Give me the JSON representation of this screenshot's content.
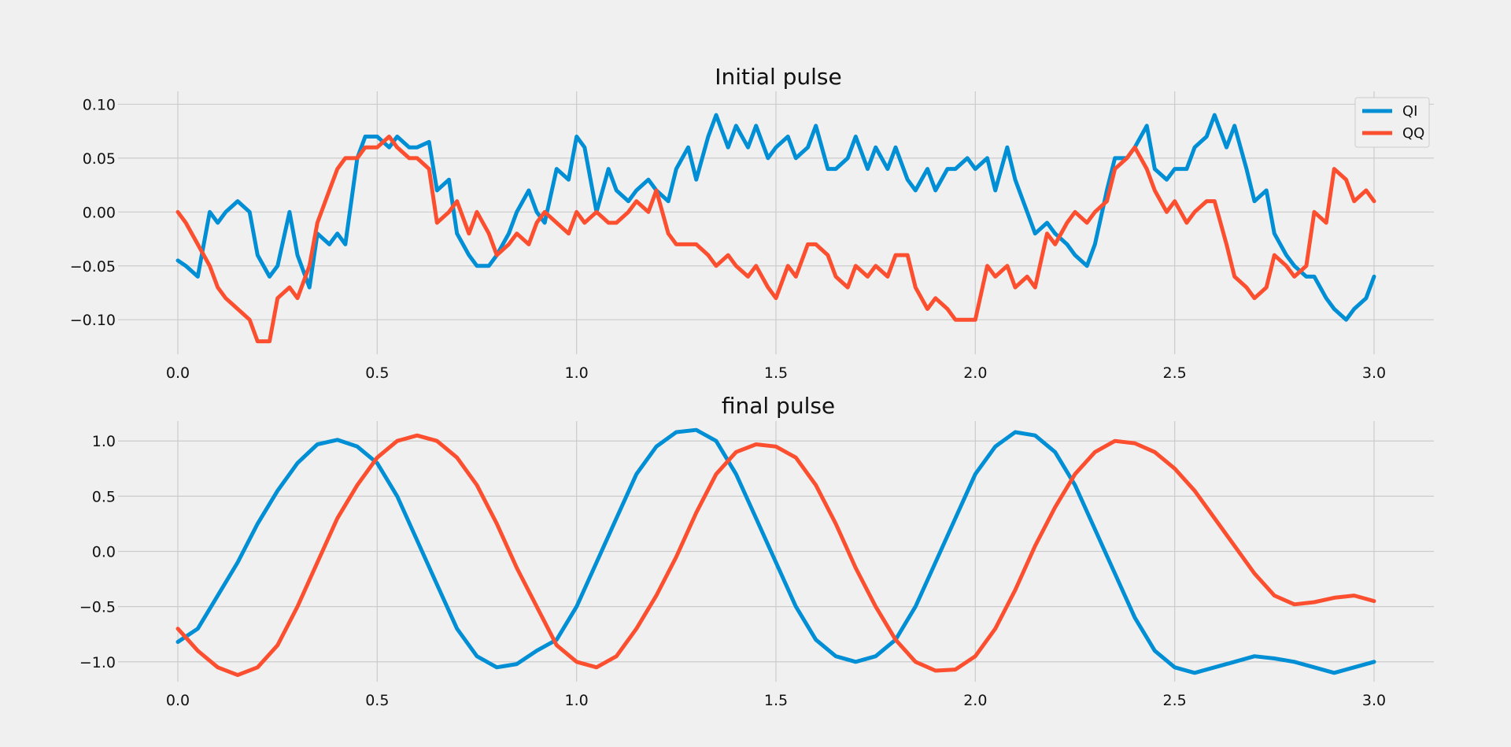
{
  "chart_data": [
    {
      "type": "line",
      "title": "Initial pulse",
      "xlabel": "",
      "ylabel": "",
      "xlim": [
        -0.15,
        3.15
      ],
      "ylim": [
        -0.132,
        0.112
      ],
      "xticks": [
        0.0,
        0.5,
        1.0,
        1.5,
        2.0,
        2.5,
        3.0
      ],
      "xtick_labels": [
        "0.0",
        "0.5",
        "1.0",
        "1.5",
        "2.0",
        "2.5",
        "3.0"
      ],
      "yticks": [
        0.1,
        0.05,
        0.0,
        -0.05,
        -0.1
      ],
      "ytick_labels": [
        "0.10",
        "0.05",
        "0.00",
        "−0.05",
        "−0.10"
      ],
      "grid": true,
      "legend": "top-right",
      "series": [
        {
          "name": "QI",
          "color": "#008fd5",
          "x": [
            0.0,
            0.02,
            0.05,
            0.08,
            0.1,
            0.12,
            0.15,
            0.18,
            0.2,
            0.23,
            0.25,
            0.28,
            0.3,
            0.33,
            0.35,
            0.38,
            0.4,
            0.42,
            0.45,
            0.47,
            0.5,
            0.53,
            0.55,
            0.58,
            0.6,
            0.63,
            0.65,
            0.68,
            0.7,
            0.73,
            0.75,
            0.78,
            0.8,
            0.83,
            0.85,
            0.88,
            0.9,
            0.92,
            0.95,
            0.98,
            1.0,
            1.02,
            1.05,
            1.08,
            1.1,
            1.13,
            1.15,
            1.18,
            1.2,
            1.23,
            1.25,
            1.28,
            1.3,
            1.33,
            1.35,
            1.38,
            1.4,
            1.43,
            1.45,
            1.48,
            1.5,
            1.53,
            1.55,
            1.58,
            1.6,
            1.63,
            1.65,
            1.68,
            1.7,
            1.73,
            1.75,
            1.78,
            1.8,
            1.83,
            1.85,
            1.88,
            1.9,
            1.93,
            1.95,
            1.98,
            2.0,
            2.03,
            2.05,
            2.08,
            2.1,
            2.13,
            2.15,
            2.18,
            2.2,
            2.23,
            2.25,
            2.28,
            2.3,
            2.33,
            2.35,
            2.38,
            2.4,
            2.43,
            2.45,
            2.48,
            2.5,
            2.53,
            2.55,
            2.58,
            2.6,
            2.63,
            2.65,
            2.68,
            2.7,
            2.73,
            2.75,
            2.78,
            2.8,
            2.83,
            2.85,
            2.88,
            2.9,
            2.93,
            2.95,
            2.98,
            3.0
          ],
          "y": [
            -0.045,
            -0.05,
            -0.06,
            0.0,
            -0.01,
            0.0,
            0.01,
            0.0,
            -0.04,
            -0.06,
            -0.05,
            0.0,
            -0.04,
            -0.07,
            -0.02,
            -0.03,
            -0.02,
            -0.03,
            0.05,
            0.07,
            0.07,
            0.06,
            0.07,
            0.06,
            0.06,
            0.065,
            0.02,
            0.03,
            -0.02,
            -0.04,
            -0.05,
            -0.05,
            -0.04,
            -0.02,
            0.0,
            0.02,
            0.0,
            -0.01,
            0.04,
            0.03,
            0.07,
            0.06,
            0.0,
            0.04,
            0.02,
            0.01,
            0.02,
            0.03,
            0.02,
            0.01,
            0.04,
            0.06,
            0.03,
            0.07,
            0.09,
            0.06,
            0.08,
            0.06,
            0.08,
            0.05,
            0.06,
            0.07,
            0.05,
            0.06,
            0.08,
            0.04,
            0.04,
            0.05,
            0.07,
            0.04,
            0.06,
            0.04,
            0.06,
            0.03,
            0.02,
            0.04,
            0.02,
            0.04,
            0.04,
            0.05,
            0.04,
            0.05,
            0.02,
            0.06,
            0.03,
            0.0,
            -0.02,
            -0.01,
            -0.02,
            -0.03,
            -0.04,
            -0.05,
            -0.03,
            0.02,
            0.05,
            0.05,
            0.06,
            0.08,
            0.04,
            0.03,
            0.04,
            0.04,
            0.06,
            0.07,
            0.09,
            0.06,
            0.08,
            0.04,
            0.01,
            0.02,
            -0.02,
            -0.04,
            -0.05,
            -0.06,
            -0.06,
            -0.08,
            -0.09,
            -0.1,
            -0.09,
            -0.08,
            -0.06
          ]
        },
        {
          "name": "QQ",
          "color": "#fc4f30",
          "x": [
            0.0,
            0.02,
            0.05,
            0.08,
            0.1,
            0.12,
            0.15,
            0.18,
            0.2,
            0.23,
            0.25,
            0.28,
            0.3,
            0.33,
            0.35,
            0.38,
            0.4,
            0.42,
            0.45,
            0.47,
            0.5,
            0.53,
            0.55,
            0.58,
            0.6,
            0.63,
            0.65,
            0.68,
            0.7,
            0.73,
            0.75,
            0.78,
            0.8,
            0.83,
            0.85,
            0.88,
            0.9,
            0.92,
            0.95,
            0.98,
            1.0,
            1.02,
            1.05,
            1.08,
            1.1,
            1.13,
            1.15,
            1.18,
            1.2,
            1.23,
            1.25,
            1.28,
            1.3,
            1.33,
            1.35,
            1.38,
            1.4,
            1.43,
            1.45,
            1.48,
            1.5,
            1.53,
            1.55,
            1.58,
            1.6,
            1.63,
            1.65,
            1.68,
            1.7,
            1.73,
            1.75,
            1.78,
            1.8,
            1.83,
            1.85,
            1.88,
            1.9,
            1.93,
            1.95,
            1.98,
            2.0,
            2.03,
            2.05,
            2.08,
            2.1,
            2.13,
            2.15,
            2.18,
            2.2,
            2.23,
            2.25,
            2.28,
            2.3,
            2.33,
            2.35,
            2.38,
            2.4,
            2.43,
            2.45,
            2.48,
            2.5,
            2.53,
            2.55,
            2.58,
            2.6,
            2.63,
            2.65,
            2.68,
            2.7,
            2.73,
            2.75,
            2.78,
            2.8,
            2.83,
            2.85,
            2.88,
            2.9,
            2.93,
            2.95,
            2.98,
            3.0
          ],
          "y": [
            0.0,
            -0.01,
            -0.03,
            -0.05,
            -0.07,
            -0.08,
            -0.09,
            -0.1,
            -0.12,
            -0.12,
            -0.08,
            -0.07,
            -0.08,
            -0.05,
            -0.01,
            0.02,
            0.04,
            0.05,
            0.05,
            0.06,
            0.06,
            0.07,
            0.06,
            0.05,
            0.05,
            0.04,
            -0.01,
            0.0,
            0.01,
            -0.02,
            0.0,
            -0.02,
            -0.04,
            -0.03,
            -0.02,
            -0.03,
            -0.01,
            0.0,
            -0.01,
            -0.02,
            0.0,
            -0.01,
            0.0,
            -0.01,
            -0.01,
            0.0,
            0.01,
            0.0,
            0.02,
            -0.02,
            -0.03,
            -0.03,
            -0.03,
            -0.04,
            -0.05,
            -0.04,
            -0.05,
            -0.06,
            -0.05,
            -0.07,
            -0.08,
            -0.05,
            -0.06,
            -0.03,
            -0.03,
            -0.04,
            -0.06,
            -0.07,
            -0.05,
            -0.06,
            -0.05,
            -0.06,
            -0.04,
            -0.04,
            -0.07,
            -0.09,
            -0.08,
            -0.09,
            -0.1,
            -0.1,
            -0.1,
            -0.05,
            -0.06,
            -0.05,
            -0.07,
            -0.06,
            -0.07,
            -0.02,
            -0.03,
            -0.01,
            0.0,
            -0.01,
            0.0,
            0.01,
            0.04,
            0.05,
            0.06,
            0.04,
            0.02,
            0.0,
            0.01,
            -0.01,
            0.0,
            0.01,
            0.01,
            -0.03,
            -0.06,
            -0.07,
            -0.08,
            -0.07,
            -0.04,
            -0.05,
            -0.06,
            -0.05,
            0.0,
            -0.01,
            0.04,
            0.03,
            0.01,
            0.02,
            0.01
          ]
        }
      ]
    },
    {
      "type": "line",
      "title": "final pulse",
      "xlabel": "",
      "ylabel": "",
      "xlim": [
        -0.15,
        3.15
      ],
      "ylim": [
        -1.18,
        1.18
      ],
      "xticks": [
        0.0,
        0.5,
        1.0,
        1.5,
        2.0,
        2.5,
        3.0
      ],
      "xtick_labels": [
        "0.0",
        "0.5",
        "1.0",
        "1.5",
        "2.0",
        "2.5",
        "3.0"
      ],
      "yticks": [
        1.0,
        0.5,
        0.0,
        -0.5,
        -1.0
      ],
      "ytick_labels": [
        "1.0",
        "0.5",
        "0.0",
        "−0.5",
        "−1.0"
      ],
      "grid": true,
      "legend": "none",
      "series": [
        {
          "name": "QI",
          "color": "#008fd5",
          "x": [
            0.0,
            0.05,
            0.1,
            0.15,
            0.2,
            0.25,
            0.3,
            0.35,
            0.4,
            0.45,
            0.5,
            0.55,
            0.6,
            0.65,
            0.7,
            0.75,
            0.8,
            0.85,
            0.9,
            0.95,
            1.0,
            1.05,
            1.1,
            1.15,
            1.2,
            1.25,
            1.3,
            1.35,
            1.4,
            1.45,
            1.5,
            1.55,
            1.6,
            1.65,
            1.7,
            1.75,
            1.8,
            1.85,
            1.9,
            1.95,
            2.0,
            2.05,
            2.1,
            2.15,
            2.2,
            2.25,
            2.3,
            2.35,
            2.4,
            2.45,
            2.5,
            2.55,
            2.6,
            2.65,
            2.7,
            2.75,
            2.8,
            2.85,
            2.9,
            2.95,
            3.0
          ],
          "y": [
            -0.82,
            -0.7,
            -0.4,
            -0.1,
            0.25,
            0.55,
            0.8,
            0.97,
            1.01,
            0.95,
            0.8,
            0.5,
            0.1,
            -0.3,
            -0.7,
            -0.95,
            -1.05,
            -1.02,
            -0.9,
            -0.8,
            -0.5,
            -0.1,
            0.3,
            0.7,
            0.95,
            1.08,
            1.1,
            1.0,
            0.7,
            0.3,
            -0.1,
            -0.5,
            -0.8,
            -0.95,
            -1.0,
            -0.95,
            -0.8,
            -0.5,
            -0.1,
            0.3,
            0.7,
            0.95,
            1.08,
            1.05,
            0.9,
            0.6,
            0.2,
            -0.2,
            -0.6,
            -0.9,
            -1.05,
            -1.1,
            -1.05,
            -1.0,
            -0.95,
            -0.97,
            -1.0,
            -1.05,
            -1.1,
            -1.05,
            -1.0
          ]
        },
        {
          "name": "QQ",
          "color": "#fc4f30",
          "x": [
            0.0,
            0.05,
            0.1,
            0.15,
            0.2,
            0.25,
            0.3,
            0.35,
            0.4,
            0.45,
            0.5,
            0.55,
            0.6,
            0.65,
            0.7,
            0.75,
            0.8,
            0.85,
            0.9,
            0.95,
            1.0,
            1.05,
            1.1,
            1.15,
            1.2,
            1.25,
            1.3,
            1.35,
            1.4,
            1.45,
            1.5,
            1.55,
            1.6,
            1.65,
            1.7,
            1.75,
            1.8,
            1.85,
            1.9,
            1.95,
            2.0,
            2.05,
            2.1,
            2.15,
            2.2,
            2.25,
            2.3,
            2.35,
            2.4,
            2.45,
            2.5,
            2.55,
            2.6,
            2.65,
            2.7,
            2.75,
            2.8,
            2.85,
            2.9,
            2.95,
            3.0
          ],
          "y": [
            -0.7,
            -0.9,
            -1.05,
            -1.12,
            -1.05,
            -0.85,
            -0.5,
            -0.1,
            0.3,
            0.6,
            0.85,
            1.0,
            1.05,
            1.0,
            0.85,
            0.6,
            0.25,
            -0.15,
            -0.5,
            -0.85,
            -1.0,
            -1.05,
            -0.95,
            -0.7,
            -0.4,
            -0.05,
            0.35,
            0.7,
            0.9,
            0.97,
            0.95,
            0.85,
            0.6,
            0.25,
            -0.15,
            -0.5,
            -0.8,
            -1.0,
            -1.08,
            -1.07,
            -0.95,
            -0.7,
            -0.35,
            0.05,
            0.4,
            0.7,
            0.9,
            1.0,
            0.98,
            0.9,
            0.75,
            0.55,
            0.3,
            0.05,
            -0.2,
            -0.4,
            -0.48,
            -0.46,
            -0.42,
            -0.4,
            -0.45
          ]
        }
      ]
    }
  ]
}
